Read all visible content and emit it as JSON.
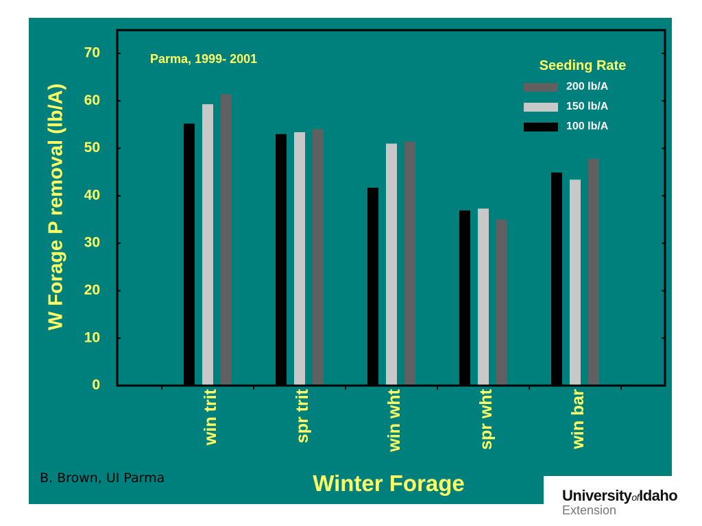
{
  "slide": {
    "credit": "B. Brown, UI Parma",
    "logo": {
      "university": "University",
      "of": "of",
      "idaho": "Idaho",
      "extension": "Extension"
    }
  },
  "colors": {
    "background": "#00807d",
    "text_yellow": "#ffff66",
    "frame": "#000000"
  },
  "chart_data": {
    "type": "bar",
    "annotation": "Parma, 1999- 2001",
    "xlabel": "Winter Forage",
    "ylabel": "W Forage P removal (lb/A)",
    "ylim": [
      0,
      70
    ],
    "yticks": [
      0,
      10,
      20,
      30,
      40,
      50,
      60,
      70
    ],
    "categories": [
      "win trit",
      "spr trit",
      "win wht",
      "spr wht",
      "win bar"
    ],
    "legend_title": "Seeding Rate",
    "legend_position": "top-right",
    "grid": false,
    "series": [
      {
        "name": "100 lb/A",
        "color": "#000000",
        "values": [
          55.2,
          53.0,
          41.7,
          36.9,
          44.9
        ]
      },
      {
        "name": "150 lb/A",
        "color": "#c8c8c8",
        "values": [
          59.3,
          53.4,
          51.0,
          37.3,
          43.4
        ]
      },
      {
        "name": "200 lb/A",
        "color": "#606060",
        "values": [
          61.4,
          54.0,
          51.4,
          35.0,
          47.8
        ]
      }
    ],
    "legend_order": [
      2,
      1,
      0
    ]
  }
}
